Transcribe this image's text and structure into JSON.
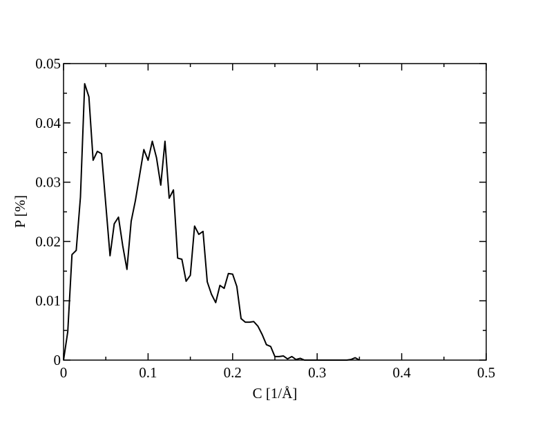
{
  "chart_data": {
    "type": "line",
    "x_label": "C [1/Å]",
    "y_label": "P [%]",
    "x": [
      0,
      0.005,
      0.01,
      0.015,
      0.02,
      0.025,
      0.03,
      0.035,
      0.04,
      0.045,
      0.05,
      0.055,
      0.06,
      0.065,
      0.07,
      0.075,
      0.08,
      0.085,
      0.09,
      0.095,
      0.1,
      0.105,
      0.11,
      0.115,
      0.12,
      0.125,
      0.13,
      0.135,
      0.14,
      0.145,
      0.15,
      0.155,
      0.16,
      0.165,
      0.17,
      0.175,
      0.18,
      0.185,
      0.19,
      0.195,
      0.2,
      0.205,
      0.21,
      0.215,
      0.22,
      0.225,
      0.23,
      0.235,
      0.24,
      0.245,
      0.25,
      0.255,
      0.26,
      0.265,
      0.27,
      0.275,
      0.28,
      0.285,
      0.29,
      0.295,
      0.3,
      0.305,
      0.31,
      0.315,
      0.32,
      0.325,
      0.33,
      0.335,
      0.34,
      0.345,
      0.35
    ],
    "values": [
      0,
      0.0048,
      0.0178,
      0.0185,
      0.0275,
      0.0466,
      0.0444,
      0.0337,
      0.0352,
      0.0348,
      0.0262,
      0.0176,
      0.023,
      0.0241,
      0.0193,
      0.0153,
      0.0234,
      0.0269,
      0.0312,
      0.0355,
      0.0337,
      0.0369,
      0.0341,
      0.0295,
      0.0369,
      0.0273,
      0.0287,
      0.0172,
      0.017,
      0.0133,
      0.0143,
      0.0226,
      0.0212,
      0.0217,
      0.0132,
      0.0111,
      0.0097,
      0.0126,
      0.0121,
      0.0146,
      0.0145,
      0.0124,
      0.007,
      0.0064,
      0.0064,
      0.0065,
      0.0057,
      0.0043,
      0.0026,
      0.0023,
      0.0006,
      0.0006,
      0.0007,
      0.0002,
      0.0006,
      0.0001,
      0.0003,
      0,
      0,
      0,
      0,
      0,
      0,
      0,
      0,
      0,
      0,
      0,
      0.0001,
      0.0004,
      0
    ],
    "color": "#000000",
    "xlim": [
      0,
      0.5
    ],
    "xticks": [
      0,
      0.1,
      0.2,
      0.3,
      0.4,
      0.5
    ],
    "xminorticks": [
      0.05,
      0.15,
      0.25,
      0.35,
      0.45
    ],
    "ylim": [
      0,
      0.05
    ],
    "yticks": [
      0,
      0.01,
      0.02,
      0.03,
      0.04,
      0.05
    ],
    "yminorticks": [
      0.005,
      0.015,
      0.025,
      0.035,
      0.045
    ],
    "grid": false
  }
}
